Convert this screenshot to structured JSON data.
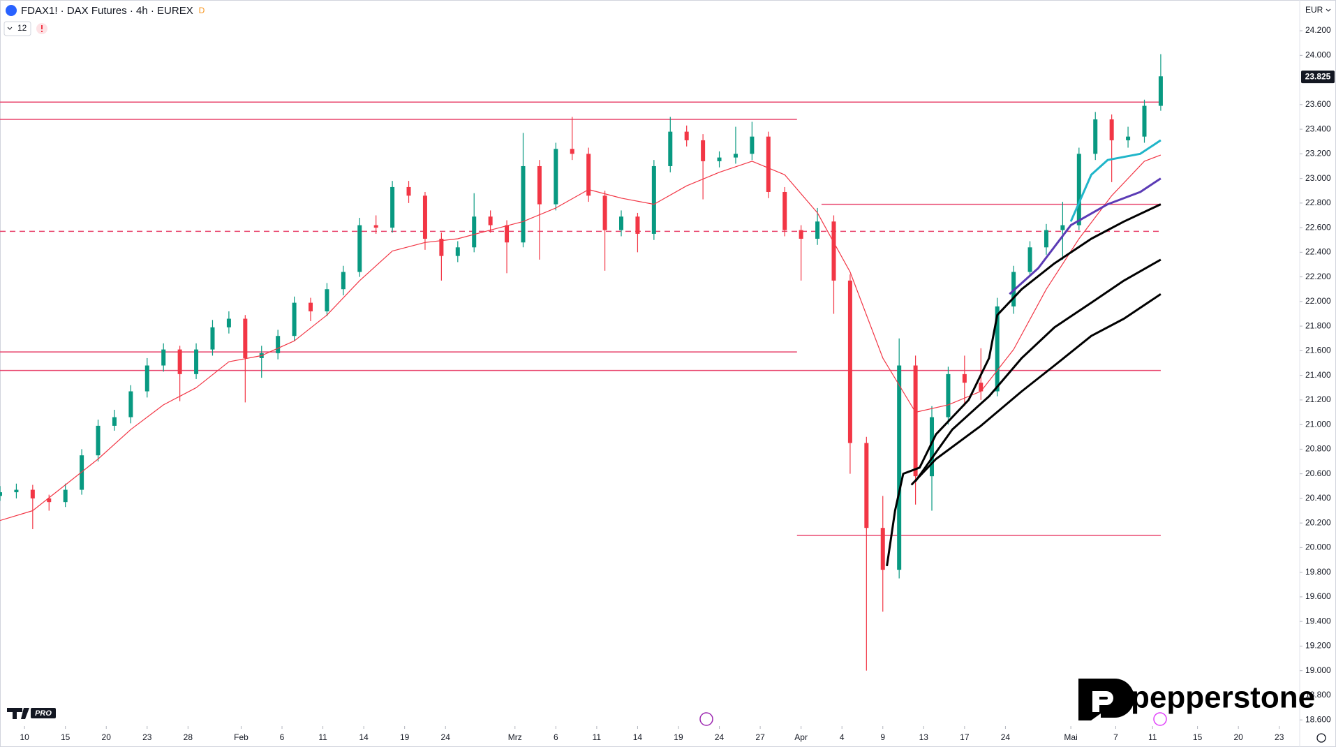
{
  "chart_data": {
    "type": "candlestick",
    "title": "FDAX1! · DAX Futures · 4h · EUREX",
    "source_badge": "D",
    "indicator_count": "12",
    "currency": "EUR",
    "watermark": "pepperstone",
    "platform_badge": "PRO",
    "xlim": [
      0,
      318
    ],
    "ylim": [
      18550,
      24450
    ],
    "grid": false,
    "up_color": "#089981",
    "down_color": "#f23645",
    "xticks": [
      {
        "value": 6,
        "label": "10"
      },
      {
        "value": 16,
        "label": "15"
      },
      {
        "value": 26,
        "label": "20"
      },
      {
        "value": 36,
        "label": "23"
      },
      {
        "value": 46,
        "label": "28"
      },
      {
        "value": 59,
        "label": "Feb"
      },
      {
        "value": 69,
        "label": "6"
      },
      {
        "value": 79,
        "label": "11"
      },
      {
        "value": 89,
        "label": "14"
      },
      {
        "value": 99,
        "label": "19"
      },
      {
        "value": 109,
        "label": "24"
      },
      {
        "value": 126,
        "label": "Mrz"
      },
      {
        "value": 136,
        "label": "6"
      },
      {
        "value": 146,
        "label": "11"
      },
      {
        "value": 156,
        "label": "14"
      },
      {
        "value": 166,
        "label": "19"
      },
      {
        "value": 176,
        "label": "24"
      },
      {
        "value": 186,
        "label": "27"
      },
      {
        "value": 196,
        "label": "Apr"
      },
      {
        "value": 206,
        "label": "4"
      },
      {
        "value": 216,
        "label": "9"
      },
      {
        "value": 226,
        "label": "13"
      },
      {
        "value": 236,
        "label": "17"
      },
      {
        "value": 246,
        "label": "24"
      },
      {
        "value": 262,
        "label": "Mai"
      },
      {
        "value": 273,
        "label": "7"
      },
      {
        "value": 282,
        "label": "11"
      },
      {
        "value": 293,
        "label": "15"
      },
      {
        "value": 303,
        "label": "20"
      },
      {
        "value": 313,
        "label": "23"
      }
    ],
    "yticks": [
      {
        "value": 18600,
        "label": "18.600"
      },
      {
        "value": 18800,
        "label": "18.800"
      },
      {
        "value": 19000,
        "label": "19.000"
      },
      {
        "value": 19200,
        "label": "19.200"
      },
      {
        "value": 19400,
        "label": "19.400"
      },
      {
        "value": 19600,
        "label": "19.600"
      },
      {
        "value": 19800,
        "label": "19.800"
      },
      {
        "value": 20000,
        "label": "20.000"
      },
      {
        "value": 20200,
        "label": "20.200"
      },
      {
        "value": 20400,
        "label": "20.400"
      },
      {
        "value": 20600,
        "label": "20.600"
      },
      {
        "value": 20800,
        "label": "20.800"
      },
      {
        "value": 21000,
        "label": "21.000"
      },
      {
        "value": 21200,
        "label": "21.200"
      },
      {
        "value": 21400,
        "label": "21.400"
      },
      {
        "value": 21600,
        "label": "21.600"
      },
      {
        "value": 21800,
        "label": "21.800"
      },
      {
        "value": 22000,
        "label": "22.000"
      },
      {
        "value": 22200,
        "label": "22.200"
      },
      {
        "value": 22400,
        "label": "22.400"
      },
      {
        "value": 22600,
        "label": "22.600"
      },
      {
        "value": 22800,
        "label": "22.800"
      },
      {
        "value": 23000,
        "label": "23.000"
      },
      {
        "value": 23200,
        "label": "23.200"
      },
      {
        "value": 23400,
        "label": "23.400"
      },
      {
        "value": 23600,
        "label": "23.600"
      },
      {
        "value": 24000,
        "label": "24.000"
      },
      {
        "value": 24200,
        "label": "24.200"
      }
    ],
    "last_price": {
      "value": 23825,
      "label": "23.825"
    },
    "x": [
      0,
      4,
      8,
      12,
      16,
      20,
      24,
      28,
      32,
      36,
      40,
      44,
      48,
      52,
      56,
      60,
      64,
      68,
      72,
      76,
      80,
      84,
      88,
      92,
      96,
      100,
      104,
      108,
      112,
      116,
      120,
      124,
      128,
      132,
      136,
      140,
      144,
      148,
      152,
      156,
      160,
      164,
      168,
      172,
      176,
      180,
      184,
      188,
      192,
      196,
      200,
      204,
      208,
      212,
      216,
      220,
      224,
      228,
      232,
      236,
      240,
      244,
      248,
      252,
      256,
      260,
      264,
      268,
      272,
      276,
      280,
      284
    ],
    "ohlc": [
      [
        20420,
        20500,
        20380,
        20450
      ],
      [
        20450,
        20520,
        20400,
        20470
      ],
      [
        20470,
        20510,
        20150,
        20400
      ],
      [
        20400,
        20430,
        20300,
        20370
      ],
      [
        20370,
        20520,
        20330,
        20470
      ],
      [
        20470,
        20800,
        20430,
        20750
      ],
      [
        20750,
        21040,
        20700,
        20990
      ],
      [
        20990,
        21120,
        20950,
        21060
      ],
      [
        21060,
        21320,
        21010,
        21270
      ],
      [
        21270,
        21540,
        21220,
        21480
      ],
      [
        21480,
        21660,
        21430,
        21610
      ],
      [
        21610,
        21640,
        21190,
        21410
      ],
      [
        21410,
        21660,
        21370,
        21610
      ],
      [
        21610,
        21850,
        21560,
        21790
      ],
      [
        21790,
        21920,
        21740,
        21860
      ],
      [
        21860,
        21890,
        21180,
        21540
      ],
      [
        21540,
        21640,
        21380,
        21580
      ],
      [
        21580,
        21770,
        21530,
        21720
      ],
      [
        21720,
        22040,
        21680,
        21990
      ],
      [
        21990,
        22030,
        21840,
        21920
      ],
      [
        21920,
        22150,
        21880,
        22100
      ],
      [
        22100,
        22290,
        22050,
        22240
      ],
      [
        22240,
        22680,
        22200,
        22620
      ],
      [
        22620,
        22700,
        22550,
        22600
      ],
      [
        22600,
        22980,
        22560,
        22930
      ],
      [
        22930,
        22980,
        22800,
        22860
      ],
      [
        22860,
        22890,
        22420,
        22510
      ],
      [
        22510,
        22560,
        22170,
        22370
      ],
      [
        22370,
        22490,
        22320,
        22440
      ],
      [
        22440,
        22880,
        22400,
        22690
      ],
      [
        22690,
        22740,
        22560,
        22620
      ],
      [
        22620,
        22660,
        22230,
        22480
      ],
      [
        22480,
        23370,
        22440,
        23100
      ],
      [
        23100,
        23150,
        22340,
        22790
      ],
      [
        22790,
        23290,
        22740,
        23240
      ],
      [
        23240,
        23500,
        23150,
        23200
      ],
      [
        23200,
        23250,
        22810,
        22860
      ],
      [
        22860,
        22900,
        22250,
        22580
      ],
      [
        22580,
        22740,
        22530,
        22690
      ],
      [
        22690,
        22720,
        22400,
        22550
      ],
      [
        22550,
        23150,
        22500,
        23100
      ],
      [
        23100,
        23500,
        23050,
        23380
      ],
      [
        23380,
        23430,
        23260,
        23310
      ],
      [
        23310,
        23360,
        22830,
        23140
      ],
      [
        23140,
        23220,
        23090,
        23170
      ],
      [
        23170,
        23420,
        23120,
        23200
      ],
      [
        23200,
        23460,
        23150,
        23340
      ],
      [
        23340,
        23380,
        22840,
        22890
      ],
      [
        22890,
        22930,
        22530,
        22580
      ],
      [
        22580,
        22620,
        22170,
        22510
      ],
      [
        22510,
        22760,
        22460,
        22650
      ],
      [
        22650,
        22700,
        21900,
        22170
      ],
      [
        22170,
        22220,
        20600,
        20850
      ],
      [
        20850,
        20900,
        19000,
        20160
      ],
      [
        20160,
        20420,
        19480,
        19820
      ],
      [
        19820,
        21700,
        19750,
        21480
      ],
      [
        21480,
        21560,
        20350,
        20580
      ],
      [
        20580,
        21150,
        20300,
        21060
      ],
      [
        21060,
        21470,
        21000,
        21410
      ],
      [
        21410,
        21560,
        21150,
        21340
      ],
      [
        21340,
        21620,
        21200,
        21270
      ],
      [
        21270,
        22030,
        21230,
        21960
      ],
      [
        21960,
        22290,
        21900,
        22240
      ],
      [
        22240,
        22490,
        22200,
        22440
      ],
      [
        22440,
        22630,
        22380,
        22580
      ],
      [
        22580,
        22810,
        22340,
        22620
      ],
      [
        22620,
        23250,
        22580,
        23200
      ],
      [
        23200,
        23540,
        23150,
        23480
      ],
      [
        23480,
        23520,
        22970,
        23310
      ],
      [
        23310,
        23420,
        23250,
        23340
      ],
      [
        23340,
        23640,
        23290,
        23590
      ],
      [
        23590,
        24010,
        23550,
        23830
      ]
    ],
    "lines": [
      {
        "color": "#f23645",
        "width": 1.2,
        "x": [
          0,
          8,
          16,
          24,
          32,
          40,
          48,
          56,
          64,
          72,
          80,
          88,
          96,
          104,
          112,
          120,
          128,
          136,
          144,
          152,
          160,
          168,
          176,
          184,
          192,
          200,
          208,
          216,
          224,
          232,
          240,
          248,
          256,
          264,
          272,
          280,
          284
        ],
        "values": [
          20220,
          20300,
          20510,
          20720,
          20960,
          21160,
          21300,
          21510,
          21560,
          21680,
          21890,
          22170,
          22410,
          22480,
          22510,
          22580,
          22650,
          22760,
          22910,
          22840,
          22790,
          22940,
          23050,
          23140,
          23030,
          22720,
          22240,
          21540,
          21100,
          21160,
          21270,
          21610,
          22100,
          22510,
          22860,
          23140,
          23190
        ]
      },
      {
        "color": "#000000",
        "width": 3,
        "x": [
          217,
          219,
          221,
          225,
          229,
          237,
          242,
          244,
          250,
          258,
          267,
          275,
          284
        ],
        "values": [
          19850,
          20300,
          20600,
          20650,
          20920,
          21200,
          21540,
          21890,
          22100,
          22310,
          22510,
          22650,
          22790
        ]
      },
      {
        "color": "#000000",
        "width": 3,
        "x": [
          224,
          233,
          242,
          250,
          258,
          267,
          275,
          284
        ],
        "values": [
          20540,
          20960,
          21230,
          21540,
          21790,
          21990,
          22170,
          22340
        ]
      },
      {
        "color": "#000000",
        "width": 3,
        "x": [
          223,
          229,
          240,
          250,
          258,
          267,
          275,
          284
        ],
        "values": [
          20510,
          20720,
          20990,
          21270,
          21480,
          21720,
          21860,
          22060
        ]
      },
      {
        "color": "#5b3bb5",
        "width": 3,
        "x": [
          247,
          254,
          262,
          271,
          279,
          284
        ],
        "values": [
          22060,
          22270,
          22620,
          22790,
          22890,
          23000
        ]
      },
      {
        "color": "#1fb5c9",
        "width": 3,
        "x": [
          262,
          267,
          271,
          279,
          284
        ],
        "values": [
          22650,
          23030,
          23150,
          23200,
          23310
        ]
      }
    ],
    "levels": [
      {
        "value": 23620,
        "xrange": [
          0,
          284
        ],
        "dashed": false
      },
      {
        "value": 23480,
        "xrange": [
          0,
          195
        ],
        "dashed": false
      },
      {
        "value": 22790,
        "xrange": [
          201,
          284
        ],
        "dashed": false
      },
      {
        "value": 22570,
        "xrange": [
          0,
          284
        ],
        "dashed": true
      },
      {
        "value": 21590,
        "xrange": [
          0,
          195
        ],
        "dashed": false
      },
      {
        "value": 21440,
        "xrange": [
          0,
          284
        ],
        "dashed": false
      },
      {
        "value": 20100,
        "xrange": [
          195,
          284
        ],
        "dashed": false
      }
    ],
    "level_color": "#e8436b"
  }
}
